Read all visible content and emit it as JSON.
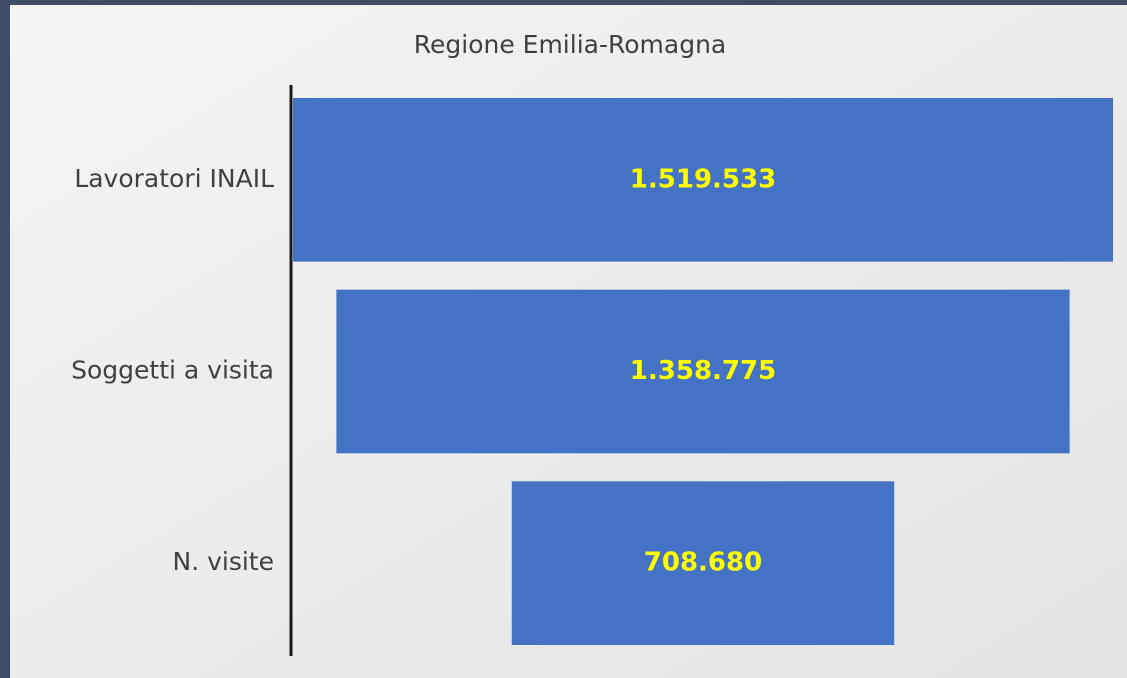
{
  "chart_data": {
    "type": "funnel",
    "title": "Regione Emilia-Romagna",
    "categories": [
      "Lavoratori INAIL",
      "Soggetti a visita",
      "N. visite"
    ],
    "values": [
      1519533,
      1358775,
      708680
    ],
    "value_labels": [
      "1.519.533",
      "1.358.775",
      "708.680"
    ],
    "color": "#4472c4",
    "label_color": "#ffff00"
  }
}
